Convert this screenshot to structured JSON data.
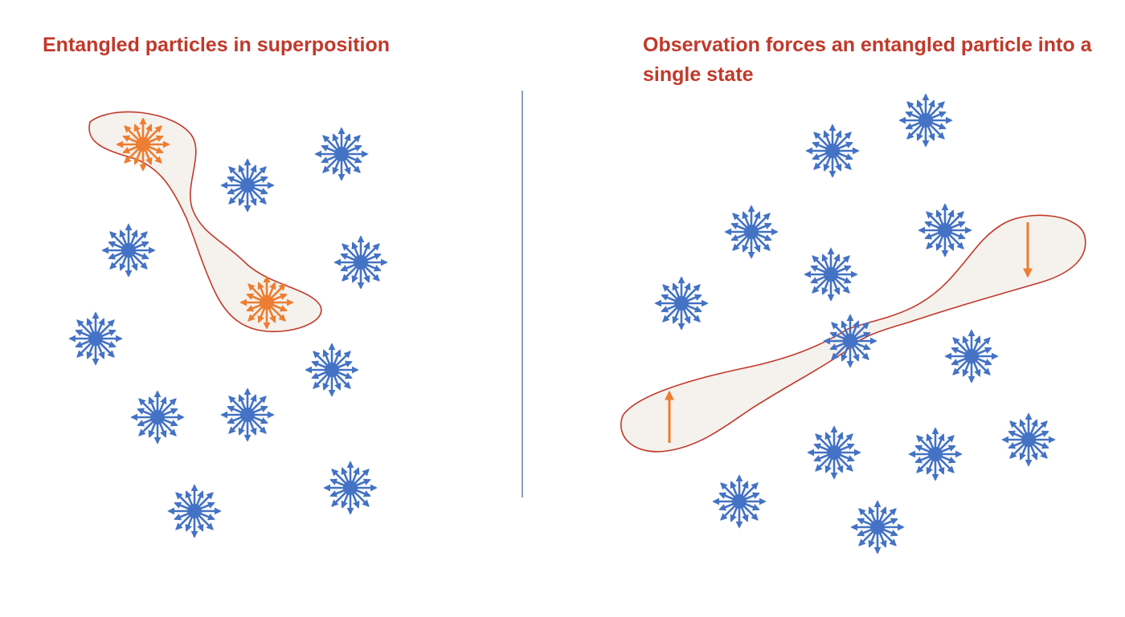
{
  "panels": {
    "left": {
      "title": "Entangled particles in superposition"
    },
    "right": {
      "title": "Observation forces an entangled particle into a single state"
    }
  },
  "colors": {
    "title": "#c0392b",
    "particle": "#4472c4",
    "entangled_particle": "#ed7d31",
    "blob_fill": "#f5f1ec",
    "blob_stroke": "#c0392b",
    "divider": "#4a6fa5"
  },
  "icons": {
    "particle": "superposition-star-icon",
    "spin_up": "arrow-up-icon",
    "spin_down": "arrow-down-icon"
  }
}
